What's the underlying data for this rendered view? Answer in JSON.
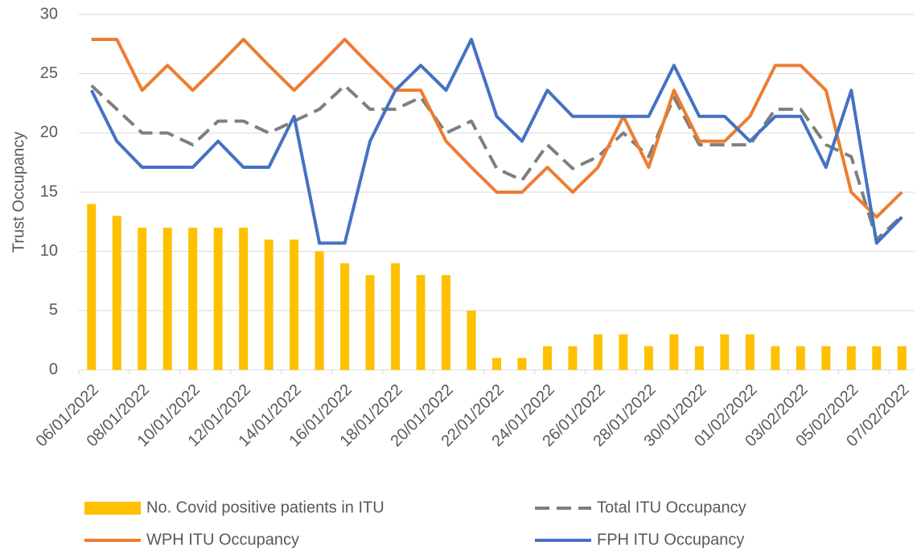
{
  "chart_data": {
    "type": "combo",
    "y_label": "Trust Occupancy",
    "categories": [
      "06/01/2022",
      null,
      "08/01/2022",
      null,
      "10/01/2022",
      null,
      "12/01/2022",
      null,
      "14/01/2022",
      null,
      "16/01/2022",
      null,
      "18/01/2022",
      null,
      "20/01/2022",
      null,
      "22/01/2022",
      null,
      "24/01/2022",
      null,
      "26/01/2022",
      null,
      "28/01/2022",
      null,
      "30/01/2022",
      null,
      "01/02/2022",
      null,
      "03/02/2022",
      null,
      "05/02/2022",
      null,
      "07/02/2022"
    ],
    "series": [
      {
        "name": "No. Covid positive patients in ITU",
        "type": "bar",
        "color": "#FFC000",
        "values": [
          14,
          13,
          12,
          12,
          12,
          12,
          12,
          11,
          11,
          10,
          9,
          8,
          9,
          8,
          8,
          5,
          1,
          1,
          2,
          2,
          3,
          3,
          2,
          3,
          2,
          3,
          3,
          2,
          2,
          2,
          2,
          2,
          2
        ]
      },
      {
        "name": "Total ITU Occupancy",
        "type": "line",
        "dashed": true,
        "color": "#7F7F7F",
        "values": [
          24,
          22,
          20,
          20,
          19,
          21,
          21,
          20,
          21,
          22,
          24,
          22,
          22,
          23,
          20,
          21,
          17,
          16,
          19,
          17,
          18,
          20,
          18,
          23,
          19,
          19,
          19,
          22,
          22,
          19,
          18,
          11,
          13
        ]
      },
      {
        "name": "WPH ITU Occupancy",
        "type": "line",
        "color": "#ED7D31",
        "values": [
          27.9,
          27.9,
          23.6,
          25.7,
          23.6,
          25.7,
          27.9,
          25.7,
          23.6,
          25.7,
          27.9,
          25.7,
          23.6,
          23.6,
          19.3,
          17.1,
          15,
          15,
          17.1,
          15,
          17.1,
          21.4,
          17.1,
          23.6,
          19.3,
          19.3,
          21.4,
          25.7,
          25.7,
          23.6,
          15,
          12.9,
          15
        ]
      },
      {
        "name": "FPH ITU Occupancy",
        "type": "line",
        "color": "#4472C4",
        "values": [
          23.6,
          19.3,
          17.1,
          17.1,
          17.1,
          19.3,
          17.1,
          17.1,
          21.4,
          10.7,
          10.7,
          19.3,
          23.6,
          25.7,
          23.6,
          27.9,
          21.4,
          19.3,
          23.6,
          21.4,
          21.4,
          21.4,
          21.4,
          25.7,
          21.4,
          21.4,
          19.3,
          21.4,
          21.4,
          17.1,
          23.6,
          10.7,
          12.9
        ]
      }
    ],
    "ylim": [
      0,
      30
    ],
    "yticks": [
      0,
      5,
      10,
      15,
      20,
      25,
      30
    ],
    "grid": true,
    "legend": "bottom"
  }
}
